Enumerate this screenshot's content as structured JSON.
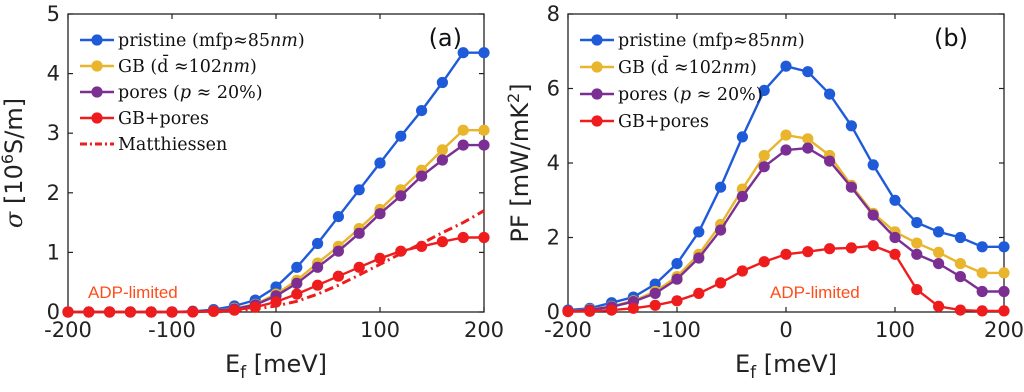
{
  "colors": {
    "pristine": "#1f5bd9",
    "gb": "#e8b52c",
    "pores": "#7b2f93",
    "gbpores": "#ee1c1c",
    "matthiessen": "#ee1c1c",
    "annotation": "#ff4d1a",
    "axis": "#222222"
  },
  "chart_data": [
    {
      "type": "line",
      "panel_label": "(a)",
      "xlabel_main": "E",
      "xlabel_sub": "f",
      "xlabel_unit": "[meV]",
      "ylabel_main": "σ",
      "ylabel_unit_pre": "[10",
      "ylabel_unit_sup": "6",
      "ylabel_unit_post": "S/m]",
      "xlim": [
        -200,
        200
      ],
      "ylim": [
        0,
        5
      ],
      "xticks": [
        -200,
        -100,
        0,
        100,
        200
      ],
      "xtick_labels": [
        "-200",
        "-100",
        "0",
        "100",
        "200"
      ],
      "yticks": [
        0,
        1,
        2,
        3,
        4,
        5
      ],
      "ytick_labels": [
        "0",
        "1",
        "2",
        "3",
        "4",
        "5"
      ],
      "grid": false,
      "legend_position": "top-left",
      "annotation": "ADP-limited",
      "x": [
        -200,
        -180,
        -160,
        -140,
        -120,
        -100,
        -80,
        -60,
        -40,
        -20,
        0,
        20,
        40,
        60,
        80,
        100,
        120,
        140,
        160,
        180,
        200
      ],
      "series": [
        {
          "key": "pristine",
          "name_pre": "pristine (mfp≈85",
          "name_em": "nm",
          "name_post": ")",
          "values": [
            0,
            0,
            0,
            0,
            0,
            0,
            0.01,
            0.04,
            0.1,
            0.2,
            0.42,
            0.75,
            1.15,
            1.6,
            2.05,
            2.5,
            2.95,
            3.38,
            3.85,
            4.35,
            4.35
          ]
        },
        {
          "key": "gb",
          "name_pre": "GB (d̄ ≈102",
          "name_em": "nm",
          "name_post": ")",
          "values": [
            0,
            0,
            0,
            0,
            0,
            0,
            0.01,
            0.02,
            0.06,
            0.13,
            0.3,
            0.53,
            0.82,
            1.1,
            1.4,
            1.72,
            2.05,
            2.38,
            2.72,
            3.05,
            3.05
          ]
        },
        {
          "key": "pores",
          "name_pre": "pores (",
          "name_em": "p",
          "name_post": " ≈ 20%)",
          "values": [
            0,
            0,
            0,
            0,
            0,
            0,
            0.01,
            0.02,
            0.05,
            0.12,
            0.27,
            0.48,
            0.75,
            1.02,
            1.32,
            1.65,
            1.95,
            2.28,
            2.55,
            2.8,
            2.8
          ]
        },
        {
          "key": "gbpores",
          "name_pre": "GB+pores",
          "name_em": "",
          "name_post": "",
          "values": [
            0,
            0,
            0,
            0,
            0,
            0,
            0,
            0.01,
            0.03,
            0.08,
            0.17,
            0.3,
            0.45,
            0.6,
            0.75,
            0.9,
            1.02,
            1.1,
            1.18,
            1.25,
            1.25
          ]
        }
      ],
      "matthiessen": {
        "name": "Matthiessen",
        "x": [
          -60,
          -40,
          -20,
          0,
          20,
          40,
          60,
          80,
          100,
          120,
          140,
          160,
          180,
          200
        ],
        "values": [
          0,
          0.02,
          0.05,
          0.1,
          0.18,
          0.3,
          0.45,
          0.62,
          0.8,
          0.98,
          1.15,
          1.33,
          1.5,
          1.7
        ]
      }
    },
    {
      "type": "line",
      "panel_label": "(b)",
      "xlabel_main": "E",
      "xlabel_sub": "f",
      "xlabel_unit": "[meV]",
      "ylabel_main": "PF [mW/mK",
      "ylabel_sup": "2",
      "ylabel_post": "]",
      "xlim": [
        -200,
        200
      ],
      "ylim": [
        0,
        8
      ],
      "xticks": [
        -200,
        -100,
        0,
        100,
        200
      ],
      "xtick_labels": [
        "-200",
        "-100",
        "0",
        "100",
        "200"
      ],
      "yticks": [
        0,
        2,
        4,
        6,
        8
      ],
      "ytick_labels": [
        "0",
        "2",
        "4",
        "6",
        "8"
      ],
      "grid": false,
      "legend_position": "top-left",
      "annotation": "ADP-limited",
      "x": [
        -200,
        -180,
        -160,
        -140,
        -120,
        -100,
        -80,
        -60,
        -40,
        -20,
        0,
        20,
        40,
        60,
        80,
        100,
        120,
        140,
        160,
        180,
        200
      ],
      "series": [
        {
          "key": "pristine",
          "name_pre": "pristine (mfp≈85",
          "name_em": "nm",
          "name_post": ")",
          "values": [
            0.05,
            0.1,
            0.25,
            0.4,
            0.75,
            1.3,
            2.15,
            3.35,
            4.7,
            5.95,
            6.6,
            6.45,
            5.85,
            5.0,
            3.95,
            3.0,
            2.4,
            2.15,
            2.0,
            1.75,
            1.75
          ]
        },
        {
          "key": "gb",
          "name_pre": "GB (d̄ ≈102",
          "name_em": "nm",
          "name_post": ")",
          "values": [
            0.03,
            0.07,
            0.15,
            0.3,
            0.55,
            0.95,
            1.55,
            2.35,
            3.3,
            4.2,
            4.75,
            4.65,
            4.2,
            3.4,
            2.65,
            2.15,
            1.85,
            1.6,
            1.3,
            1.05,
            1.05
          ]
        },
        {
          "key": "pores",
          "name_pre": "pores (",
          "name_em": "p",
          "name_post": " ≈ 20%)",
          "values": [
            0.03,
            0.06,
            0.14,
            0.28,
            0.5,
            0.88,
            1.45,
            2.2,
            3.1,
            3.9,
            4.35,
            4.4,
            4.05,
            3.35,
            2.6,
            2.0,
            1.55,
            1.3,
            0.95,
            0.55,
            0.55
          ]
        },
        {
          "key": "gbpores",
          "name_pre": "GB+pores",
          "name_em": "",
          "name_post": "",
          "values": [
            0.01,
            0.02,
            0.05,
            0.1,
            0.18,
            0.3,
            0.5,
            0.78,
            1.1,
            1.35,
            1.55,
            1.62,
            1.7,
            1.72,
            1.78,
            1.55,
            0.6,
            0.15,
            0.05,
            0.03,
            0.03
          ]
        }
      ]
    }
  ]
}
